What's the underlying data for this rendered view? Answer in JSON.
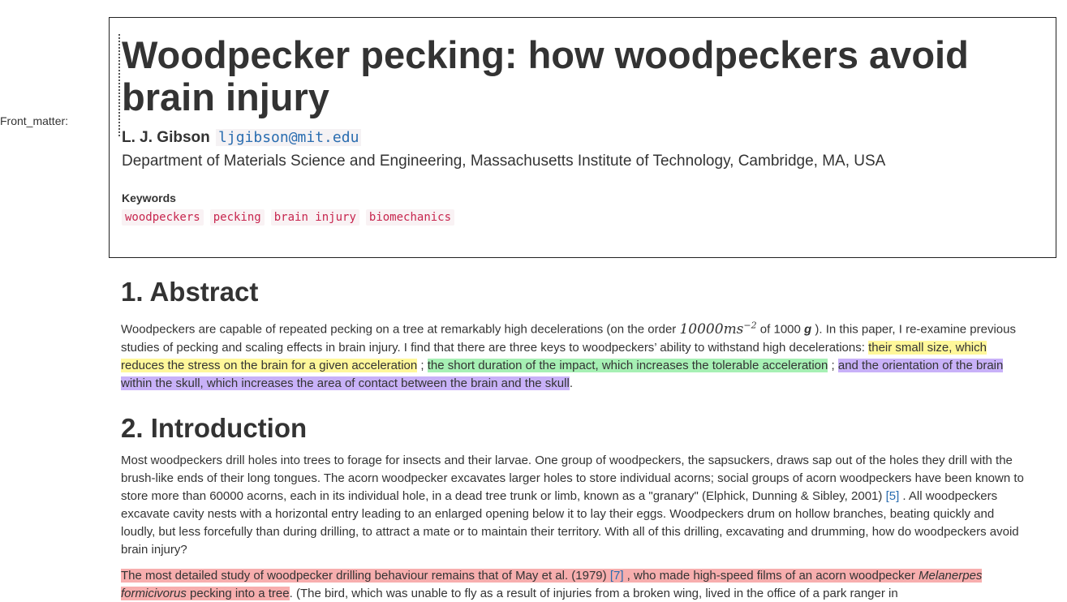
{
  "front_matter_label": "Front_matter:",
  "title": "Woodpecker pecking: how woodpeckers avoid brain injury",
  "author": {
    "name": "L. J. Gibson",
    "email": "ljgibson@mit.edu",
    "affiliation": "Department of Materials Science and Engineering, Massachusetts Institute of Technology, Cambridge, MA, USA"
  },
  "keywords": {
    "heading": "Keywords",
    "items": [
      "woodpeckers",
      "pecking",
      "brain injury",
      "biomechanics"
    ]
  },
  "sections": {
    "abstract": {
      "heading": "1. Abstract",
      "intro_text": "Woodpeckers are capable of repeated pecking on a tree at remarkably high decelerations (on the order ",
      "math_value": "10000ms",
      "math_exp": "−2",
      "of_text": " of 1000 ",
      "g_symbol": "g",
      "after_g": " ). In this paper, I re-examine previous studies of pecking and scaling effects in brain injury. I find that there are three keys to woodpeckers’ ability to withstand high decelerations: ",
      "key_yellow": "their small size, which reduces the stress on the brain for a given acceleration",
      "sep1": " ; ",
      "key_green": "the short duration of the impact, which increases the tolerable acceleration",
      "sep2": " ; ",
      "key_purple": "and the orientation of the brain within the skull, which increases the area of contact between the brain and the skull",
      "end": "."
    },
    "introduction": {
      "heading": "2. Introduction",
      "para1_text": "Most woodpeckers drill holes into trees to forage for insects and their larvae. One group of woodpeckers, the sapsuckers, draws sap out of the holes they drill with the brush-like ends of their long tongues. The acorn woodpecker excavates larger holes to store individual acorns; social groups of acorn woodpeckers have been known to store more than 60000 acorns, each in its individual hole, in a dead tree trunk or limb, known as a \"granary\" (Elphick, Dunning & Sibley, 2001) ",
      "para1_cite": "[5]",
      "para1_rest": " . All woodpeckers excavate cavity nests with a horizontal entry leading to an enlarged opening below it to lay their eggs. Woodpeckers drum on hollow branches, beating quickly and loudly, but less forcefully than during drilling, to attract a mate or to maintain their territory. With all of this drilling, excavating and drumming, how do woodpeckers avoid brain injury?",
      "para2_hl_a": "The most detailed study of woodpecker drilling behaviour remains that of May et al. (1979) ",
      "para2_cite": "[7]",
      "para2_hl_b": " , who made high-speed films of an acorn woodpecker ",
      "para2_species": "Melanerpes formicivorus",
      "para2_hl_c": " pecking into a tree",
      "para2_rest": ". (The bird, which was unable to fly as a result of injuries from a broken wing, lived in the office of a park ranger in"
    }
  }
}
